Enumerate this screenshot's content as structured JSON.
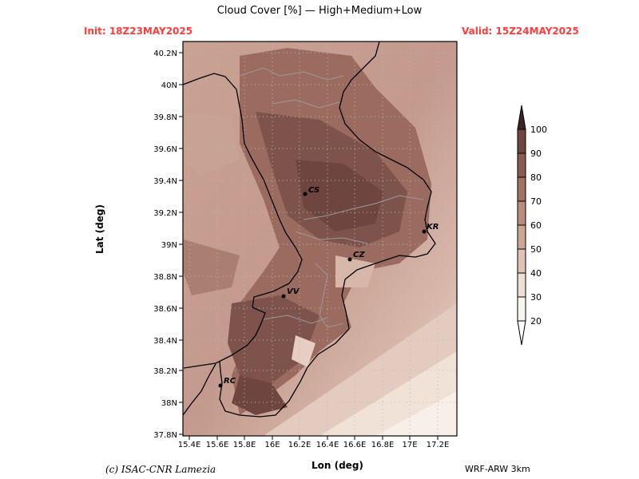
{
  "header": {
    "title": "Cloud Cover [%] — High+Medium+Low",
    "init": "Init: 18Z23MAY2025",
    "valid": "Valid: 15Z24MAY2025"
  },
  "axes": {
    "xlabel": "Lon (deg)",
    "ylabel": "Lat (deg)",
    "xticks": [
      "15.4E",
      "15.6E",
      "15.8E",
      "16E",
      "16.2E",
      "16.4E",
      "16.6E",
      "16.8E",
      "17E",
      "17.2E"
    ],
    "yticks": [
      "40.2N",
      "40N",
      "39.8N",
      "39.6N",
      "39.4N",
      "39.2N",
      "39N",
      "38.8N",
      "38.6N",
      "38.4N",
      "38.2N",
      "38N",
      "37.8N"
    ]
  },
  "colorbar": {
    "labels": [
      "20",
      "30",
      "40",
      "50",
      "60",
      "70",
      "80",
      "90",
      "100"
    ],
    "colors": [
      "#fbf5ef",
      "#eedfd5",
      "#dfc4b6",
      "#cca697",
      "#ba8c7e",
      "#a47166",
      "#8b5a51",
      "#6f4540",
      "#4f2f2c"
    ]
  },
  "cities": [
    {
      "name": "CS"
    },
    {
      "name": "KR"
    },
    {
      "name": "CZ"
    },
    {
      "name": "VV"
    },
    {
      "name": "RC"
    }
  ],
  "footer": {
    "credit": "(c) ISAC-CNR Lamezia",
    "model": "WRF-ARW 3km"
  }
}
